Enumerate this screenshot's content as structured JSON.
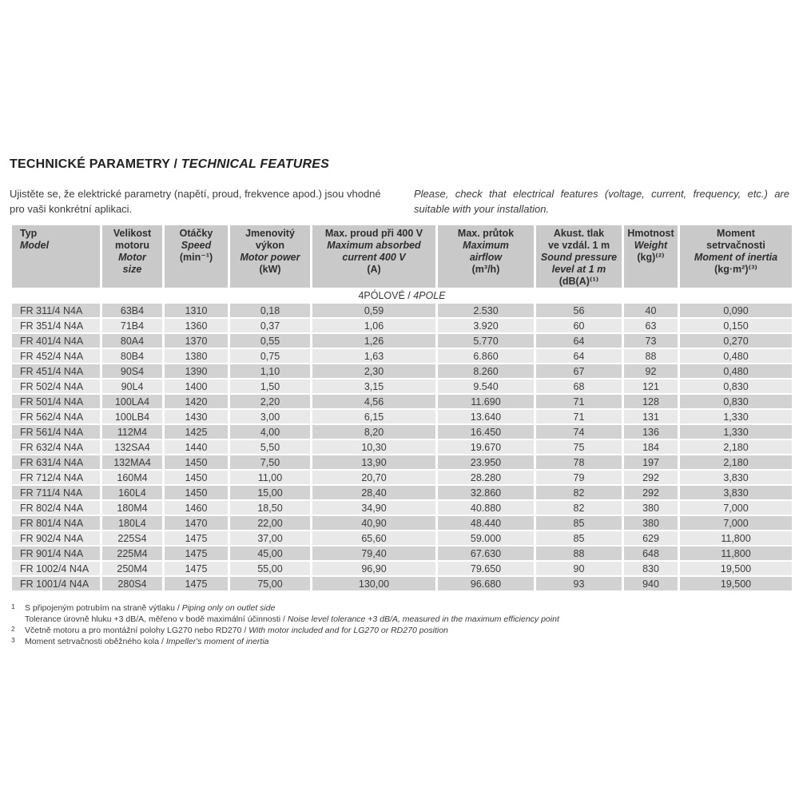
{
  "page": {
    "title": {
      "czech": "TECHNICKÉ PARAMETRY",
      "separator": " / ",
      "english": "TECHNICAL FEATURES"
    },
    "intro_czech": "Ujistěte se, že elektrické parametry (napětí, proud, frekvence apod.) jsou vhodné pro vaši konkrétní aplikaci.",
    "intro_english": "Please, check that electrical features (voltage, current, frequency, etc.) are suitable with your installation."
  },
  "table": {
    "columns": [
      {
        "id": "typ-model",
        "czech_lines": [
          "Typ"
        ],
        "english_lines": [
          "Model"
        ],
        "unit": ""
      },
      {
        "id": "velikost-motoru",
        "czech_lines": [
          "Velikost",
          "motoru"
        ],
        "english_lines": [
          "Motor",
          "size"
        ],
        "unit": ""
      },
      {
        "id": "otacky",
        "czech_lines": [
          "Otáčky"
        ],
        "english_lines": [
          "Speed"
        ],
        "unit": "(min⁻¹)"
      },
      {
        "id": "jmenovity-vykon",
        "czech_lines": [
          "Jmenovitý",
          "výkon"
        ],
        "english_lines": [
          "Motor power"
        ],
        "unit": "(kW)"
      },
      {
        "id": "max-proud",
        "czech_lines": [
          "Max. proud při 400 V"
        ],
        "english_lines": [
          "Maximum absorbed",
          "current 400 V"
        ],
        "unit": "(A)"
      },
      {
        "id": "max-prutok",
        "czech_lines": [
          "Max. průtok"
        ],
        "english_lines": [
          "Maximum",
          "airflow"
        ],
        "unit": "(m³/h)"
      },
      {
        "id": "akust-tlak",
        "czech_lines": [
          "Akust. tlak",
          "ve vzdál. 1 m"
        ],
        "english_lines": [
          "Sound pressure",
          "level at 1 m"
        ],
        "unit": "(dB(A)⁽¹⁾"
      },
      {
        "id": "hmotnost",
        "czech_lines": [
          "Hmotnost"
        ],
        "english_lines": [
          "Weight"
        ],
        "unit": "(kg)⁽²⁾"
      },
      {
        "id": "moment",
        "czech_lines": [
          "Moment",
          "setrvačnosti"
        ],
        "english_lines": [
          "Moment of inertia"
        ],
        "unit": "(kg·m²)⁽³⁾"
      }
    ],
    "section": {
      "czech": "4PÓLOVÉ",
      "separator": " / ",
      "english": "4POLE"
    },
    "rows": [
      [
        "FR 311/4 N4A",
        "63B4",
        "1310",
        "0,18",
        "0,59",
        "2.530",
        "56",
        "40",
        "0,090"
      ],
      [
        "FR 351/4 N4A",
        "71B4",
        "1360",
        "0,37",
        "1,06",
        "3.920",
        "60",
        "63",
        "0,150"
      ],
      [
        "FR 401/4 N4A",
        "80A4",
        "1370",
        "0,55",
        "1,26",
        "5.770",
        "64",
        "73",
        "0,270"
      ],
      [
        "FR 452/4 N4A",
        "80B4",
        "1380",
        "0,75",
        "1,63",
        "6.860",
        "64",
        "88",
        "0,480"
      ],
      [
        "FR 451/4 N4A",
        "90S4",
        "1390",
        "1,10",
        "2,30",
        "8.260",
        "67",
        "92",
        "0,480"
      ],
      [
        "FR 502/4 N4A",
        "90L4",
        "1400",
        "1,50",
        "3,15",
        "9.540",
        "68",
        "121",
        "0,830"
      ],
      [
        "FR 501/4 N4A",
        "100LA4",
        "1420",
        "2,20",
        "4,56",
        "11.690",
        "71",
        "128",
        "0,830"
      ],
      [
        "FR 562/4 N4A",
        "100LB4",
        "1430",
        "3,00",
        "6,15",
        "13.640",
        "71",
        "131",
        "1,330"
      ],
      [
        "FR 561/4 N4A",
        "112M4",
        "1425",
        "4,00",
        "8,20",
        "16.450",
        "74",
        "136",
        "1,330"
      ],
      [
        "FR 632/4 N4A",
        "132SA4",
        "1440",
        "5,50",
        "10,30",
        "19.670",
        "75",
        "184",
        "2,180"
      ],
      [
        "FR 631/4 N4A",
        "132MA4",
        "1450",
        "7,50",
        "13,90",
        "23.950",
        "78",
        "197",
        "2,180"
      ],
      [
        "FR 712/4 N4A",
        "160M4",
        "1450",
        "11,00",
        "20,70",
        "28.280",
        "79",
        "292",
        "3,830"
      ],
      [
        "FR 711/4 N4A",
        "160L4",
        "1450",
        "15,00",
        "28,40",
        "32.860",
        "82",
        "292",
        "3,830"
      ],
      [
        "FR 802/4 N4A",
        "180M4",
        "1460",
        "18,50",
        "34,90",
        "40.880",
        "82",
        "380",
        "7,000"
      ],
      [
        "FR 801/4 N4A",
        "180L4",
        "1470",
        "22,00",
        "40,90",
        "48.440",
        "85",
        "380",
        "7,000"
      ],
      [
        "FR 902/4 N4A",
        "225S4",
        "1475",
        "37,00",
        "65,60",
        "59.000",
        "85",
        "629",
        "11,800"
      ],
      [
        "FR 901/4 N4A",
        "225M4",
        "1475",
        "45,00",
        "79,40",
        "67.630",
        "88",
        "648",
        "11,800"
      ],
      [
        "FR 1002/4 N4A",
        "250M4",
        "1475",
        "55,00",
        "96,90",
        "79.650",
        "90",
        "830",
        "19,500"
      ],
      [
        "FR 1001/4 N4A",
        "280S4",
        "1475",
        "75,00",
        "130,00",
        "96.680",
        "93",
        "940",
        "19,500"
      ]
    ]
  },
  "footnotes": {
    "separator": " / ",
    "items": [
      {
        "marker": "1",
        "lines": [
          {
            "czech": "S připojeným potrubím na straně výtlaku",
            "english": "Piping only on outlet side"
          },
          {
            "czech": "Tolerance úrovně hluku +3 dB/A, měřeno v bodě maximální účinnosti",
            "english": "Noise level tolerance +3 dB/A, measured in the maximum efficiency point"
          }
        ]
      },
      {
        "marker": "2",
        "lines": [
          {
            "czech": "Včetně motoru a pro montážní polohy LG270 nebo RD270",
            "english": "With motor included and for LG270 or RD270 position"
          }
        ]
      },
      {
        "marker": "3",
        "lines": [
          {
            "czech": "Moment setrvačnosti oběžného kola",
            "english": "Impeller's moment of inertia"
          }
        ]
      }
    ]
  },
  "colors": {
    "header_bg": "#c9c9c9",
    "row_dark": "#d2d2d2",
    "row_light": "#e9e9e9",
    "text": "#3a3a3a"
  }
}
